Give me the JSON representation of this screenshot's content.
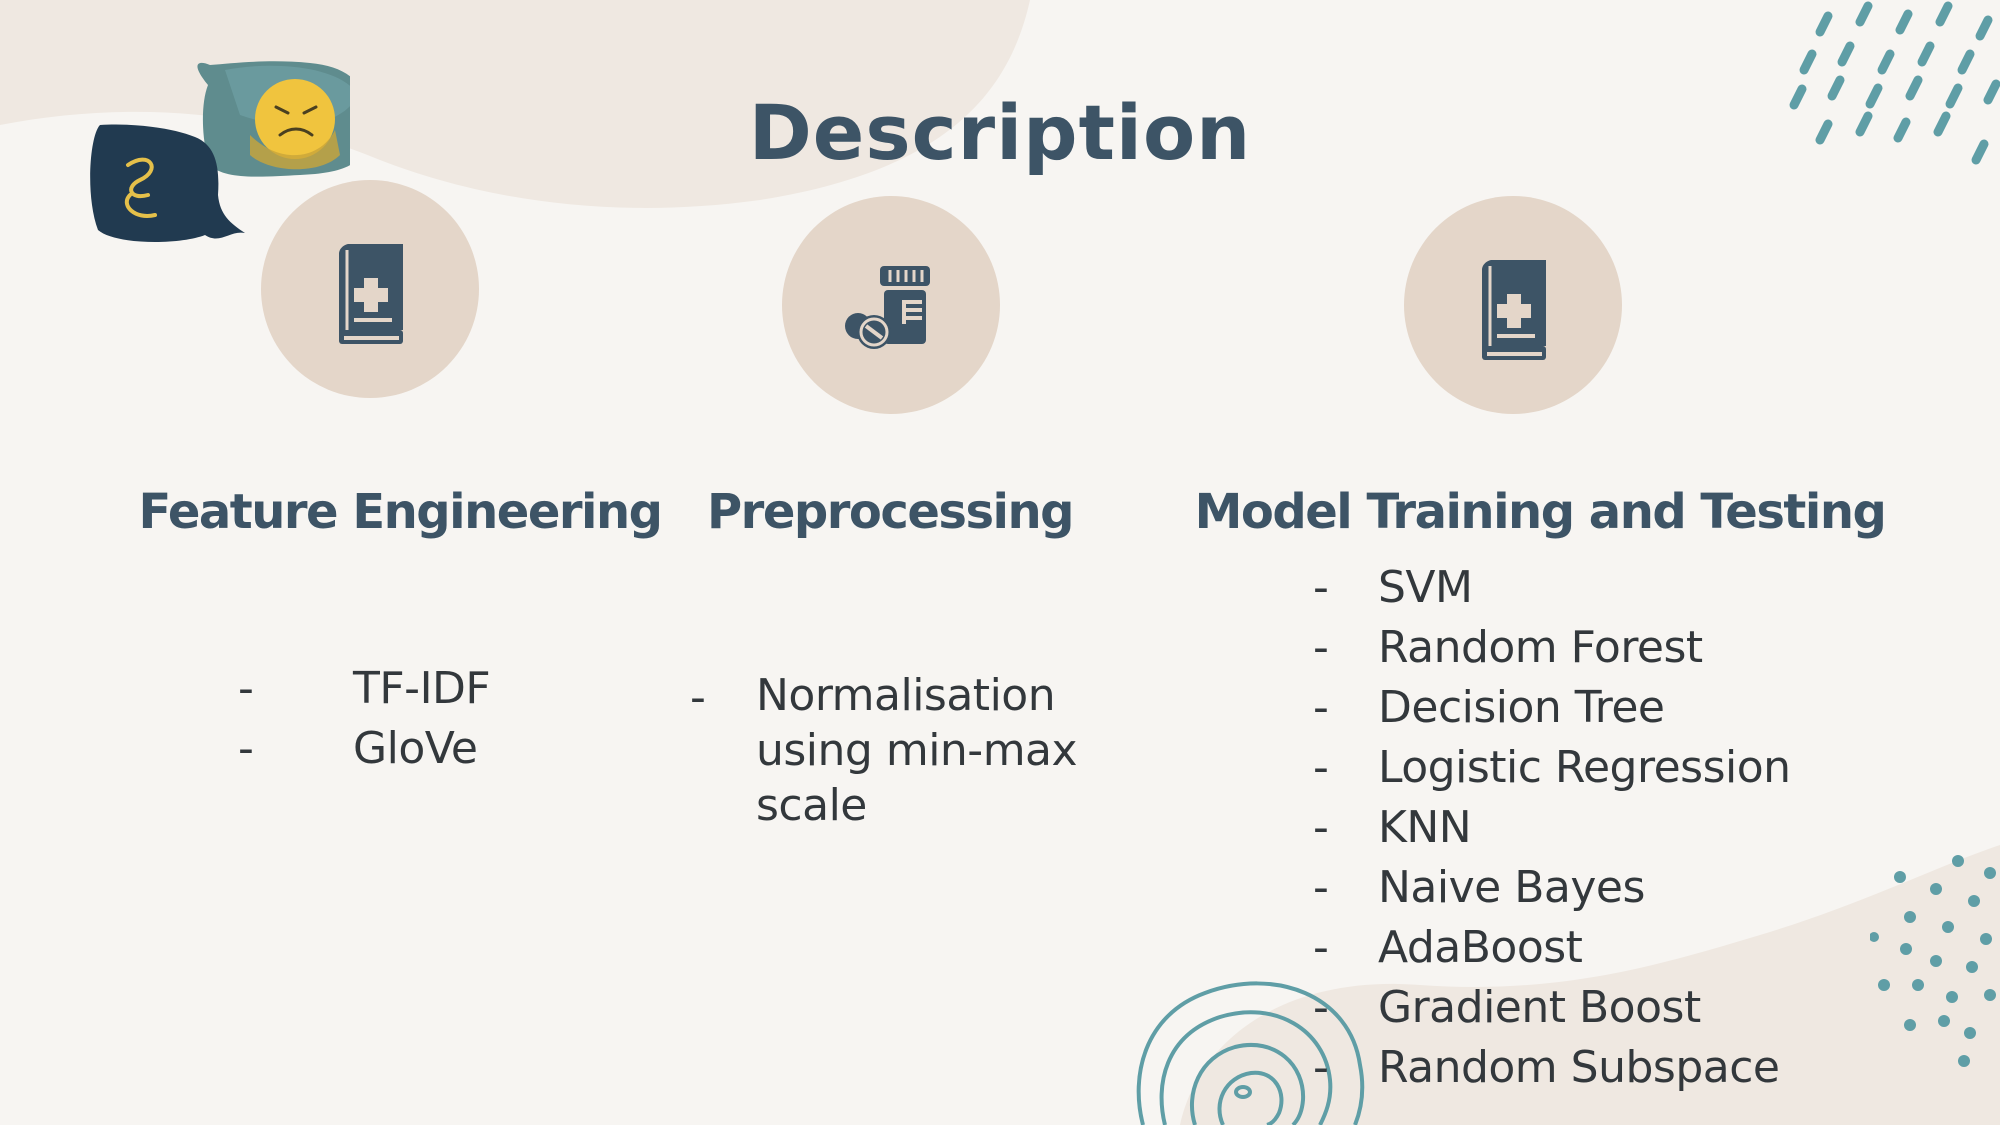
{
  "slide": {
    "title": "Description",
    "bullet_marker": "-",
    "colors": {
      "background": "#f7f5f2",
      "blob": "#efe8e1",
      "circle": "#e4d6c9",
      "heading": "#3d5466",
      "accent_teal": "#5f9ea6",
      "navy": "#213a50",
      "yellow": "#f0c43e"
    },
    "columns": [
      {
        "heading": "Feature Engineering",
        "icon": "medical-book-icon",
        "items": [
          "TF-IDF",
          "GloVe"
        ]
      },
      {
        "heading": "Preprocessing",
        "icon": "medicine-bottle-pills-icon",
        "items": [
          "Normalisation using min-max scale"
        ]
      },
      {
        "heading": "Model Training and Testing",
        "icon": "medical-book-icon",
        "items": [
          "SVM",
          "Random Forest",
          "Decision Tree",
          "Logistic Regression",
          "KNN",
          "Naive Bayes",
          "AdaBoost",
          "Gradient Boost",
          "Random Subspace"
        ]
      }
    ]
  }
}
